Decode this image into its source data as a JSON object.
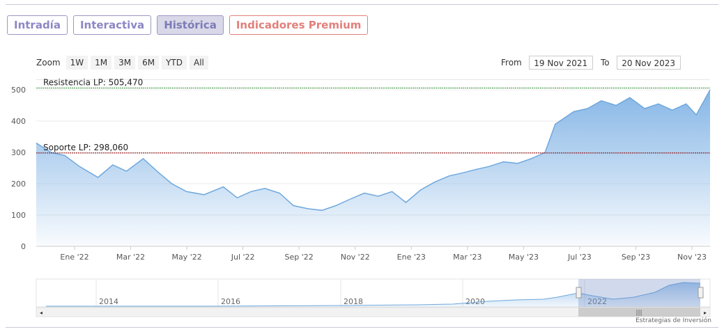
{
  "tabs": [
    {
      "label": "Intradía",
      "active": false
    },
    {
      "label": "Interactiva",
      "active": false
    },
    {
      "label": "Histórica",
      "active": true
    },
    {
      "label": "Indicadores Premium",
      "active": false
    }
  ],
  "zoom": {
    "label": "Zoom",
    "buttons": [
      "1W",
      "1M",
      "3M",
      "6M",
      "YTD",
      "All"
    ]
  },
  "range": {
    "from_label": "From",
    "from_value": "19 Nov 2021",
    "to_label": "To",
    "to_value": "20 Nov 2023"
  },
  "colors": {
    "accent": "#8b87c4",
    "premium": "#e2807b",
    "series_line": "#6fa8dc",
    "resistance": "#2e8b2e",
    "support": "#8b0000"
  },
  "credit": "Estrategias de Inversión",
  "navigator": {
    "year_labels": [
      "2014",
      "2016",
      "2018",
      "2020",
      "2022"
    ]
  },
  "chart_data": {
    "type": "area",
    "x_tick_labels": [
      "Ene '22",
      "Mar '22",
      "May '22",
      "Jul '22",
      "Sep '22",
      "Nov '22",
      "Ene '23",
      "Mar '23",
      "May '23",
      "Jul '23",
      "Sep '23",
      "Nov '23"
    ],
    "y_tick_labels": [
      "0",
      "100",
      "200",
      "300",
      "400",
      "500"
    ],
    "ylim": [
      0,
      500
    ],
    "grid": true,
    "annotations": [
      {
        "label": "Resistencia LP: 505,470",
        "value": 505.47
      },
      {
        "label": "Soporte LP: 298,060",
        "value": 298.06
      }
    ],
    "series": [
      {
        "x": [
          "2021-11-19",
          "2021-12-05",
          "2021-12-20",
          "2022-01-05",
          "2022-01-25",
          "2022-02-10",
          "2022-02-25",
          "2022-03-15",
          "2022-04-01",
          "2022-04-15",
          "2022-05-01",
          "2022-05-20",
          "2022-06-10",
          "2022-06-25",
          "2022-07-10",
          "2022-07-25",
          "2022-08-10",
          "2022-08-25",
          "2022-09-10",
          "2022-09-25",
          "2022-10-10",
          "2022-10-25",
          "2022-11-10",
          "2022-11-25",
          "2022-12-10",
          "2022-12-25",
          "2023-01-10",
          "2023-01-25",
          "2023-02-10",
          "2023-02-25",
          "2023-03-10",
          "2023-03-25",
          "2023-04-10",
          "2023-04-25",
          "2023-05-10",
          "2023-05-25",
          "2023-06-05",
          "2023-06-10",
          "2023-06-25",
          "2023-07-10",
          "2023-07-25",
          "2023-08-10",
          "2023-08-25",
          "2023-09-10",
          "2023-09-25",
          "2023-10-10",
          "2023-10-25",
          "2023-11-05",
          "2023-11-20"
        ],
        "values": [
          330,
          300,
          290,
          255,
          220,
          260,
          240,
          280,
          235,
          200,
          175,
          165,
          190,
          155,
          175,
          185,
          170,
          130,
          120,
          115,
          130,
          150,
          170,
          160,
          175,
          140,
          180,
          205,
          225,
          235,
          245,
          255,
          270,
          265,
          280,
          300,
          390,
          400,
          430,
          440,
          465,
          450,
          475,
          440,
          455,
          435,
          455,
          420,
          500
        ]
      }
    ]
  }
}
